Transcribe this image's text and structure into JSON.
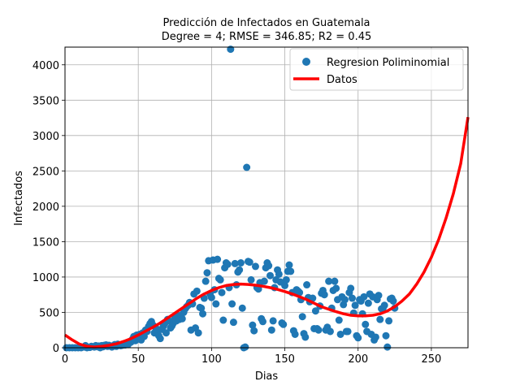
{
  "chart_data": {
    "type": "scatter",
    "title_line1": "Predicción de Infectados en  Guatemala",
    "title_line2": "Degree = 4; RMSE = 346.85; R2 = 0.45",
    "xlabel": "Dias",
    "ylabel": "Infectados",
    "xlim": [
      0,
      275
    ],
    "ylim": [
      0,
      4250
    ],
    "xticks": [
      0,
      50,
      100,
      150,
      200,
      250
    ],
    "yticks": [
      0,
      500,
      1000,
      1500,
      2000,
      2500,
      3000,
      3500,
      4000
    ],
    "grid": true,
    "legend_placement": "top-right",
    "colors": {
      "points": "#1f77b4",
      "curve": "#ff0000"
    },
    "series": [
      {
        "name": "Regresion Poliminomial",
        "kind": "scatter",
        "points": [
          [
            1,
            0
          ],
          [
            3,
            0
          ],
          [
            5,
            0
          ],
          [
            7,
            0
          ],
          [
            9,
            0
          ],
          [
            11,
            0
          ],
          [
            13,
            10
          ],
          [
            14,
            30
          ],
          [
            15,
            0
          ],
          [
            17,
            5
          ],
          [
            18,
            20
          ],
          [
            20,
            10
          ],
          [
            21,
            30
          ],
          [
            22,
            15
          ],
          [
            23,
            25
          ],
          [
            24,
            0
          ],
          [
            25,
            30
          ],
          [
            26,
            15
          ],
          [
            27,
            35
          ],
          [
            28,
            40
          ],
          [
            29,
            20
          ],
          [
            30,
            35
          ],
          [
            31,
            25
          ],
          [
            32,
            10
          ],
          [
            33,
            30
          ],
          [
            34,
            45
          ],
          [
            35,
            20
          ],
          [
            36,
            50
          ],
          [
            37,
            40
          ],
          [
            38,
            30
          ],
          [
            39,
            35
          ],
          [
            40,
            55
          ],
          [
            41,
            40
          ],
          [
            42,
            60
          ],
          [
            43,
            45
          ],
          [
            44,
            70
          ],
          [
            45,
            80
          ],
          [
            46,
            120
          ],
          [
            47,
            160
          ],
          [
            48,
            100
          ],
          [
            49,
            180
          ],
          [
            50,
            150
          ],
          [
            51,
            190
          ],
          [
            52,
            110
          ],
          [
            53,
            210
          ],
          [
            54,
            160
          ],
          [
            55,
            250
          ],
          [
            56,
            230
          ],
          [
            57,
            300
          ],
          [
            58,
            340
          ],
          [
            59,
            370
          ],
          [
            60,
            320
          ],
          [
            61,
            210
          ],
          [
            62,
            280
          ],
          [
            63,
            250
          ],
          [
            64,
            170
          ],
          [
            65,
            130
          ],
          [
            66,
            260
          ],
          [
            67,
            300
          ],
          [
            68,
            340
          ],
          [
            69,
            210
          ],
          [
            70,
            400
          ],
          [
            71,
            380
          ],
          [
            72,
            280
          ],
          [
            73,
            310
          ],
          [
            74,
            350
          ],
          [
            75,
            420
          ],
          [
            76,
            380
          ],
          [
            77,
            450
          ],
          [
            78,
            400
          ],
          [
            79,
            460
          ],
          [
            80,
            410
          ],
          [
            81,
            500
          ],
          [
            82,
            550
          ],
          [
            83,
            580
          ],
          [
            84,
            600
          ],
          [
            85,
            640
          ],
          [
            86,
            250
          ],
          [
            87,
            620
          ],
          [
            88,
            760
          ],
          [
            89,
            280
          ],
          [
            90,
            800
          ],
          [
            91,
            210
          ],
          [
            92,
            570
          ],
          [
            93,
            560
          ],
          [
            94,
            480
          ],
          [
            95,
            700
          ],
          [
            96,
            940
          ],
          [
            97,
            1060
          ],
          [
            98,
            1230
          ],
          [
            99,
            760
          ],
          [
            100,
            710
          ],
          [
            101,
            1240
          ],
          [
            102,
            820
          ],
          [
            103,
            620
          ],
          [
            104,
            1250
          ],
          [
            105,
            980
          ],
          [
            106,
            960
          ],
          [
            107,
            780
          ],
          [
            108,
            390
          ],
          [
            109,
            1130
          ],
          [
            110,
            1200
          ],
          [
            111,
            1180
          ],
          [
            112,
            850
          ],
          [
            113,
            4220
          ],
          [
            114,
            620
          ],
          [
            115,
            360
          ],
          [
            116,
            1190
          ],
          [
            117,
            890
          ],
          [
            118,
            1070
          ],
          [
            119,
            1100
          ],
          [
            120,
            1200
          ],
          [
            121,
            560
          ],
          [
            122,
            0
          ],
          [
            123,
            10
          ],
          [
            124,
            2550
          ],
          [
            125,
            1220
          ],
          [
            126,
            1210
          ],
          [
            127,
            960
          ],
          [
            128,
            320
          ],
          [
            129,
            240
          ],
          [
            130,
            1150
          ],
          [
            131,
            850
          ],
          [
            132,
            830
          ],
          [
            133,
            920
          ],
          [
            134,
            410
          ],
          [
            135,
            370
          ],
          [
            136,
            940
          ],
          [
            137,
            1130
          ],
          [
            138,
            1200
          ],
          [
            139,
            1160
          ],
          [
            140,
            1020
          ],
          [
            141,
            250
          ],
          [
            142,
            380
          ],
          [
            143,
            850
          ],
          [
            144,
            960
          ],
          [
            145,
            1100
          ],
          [
            146,
            1040
          ],
          [
            147,
            930
          ],
          [
            148,
            350
          ],
          [
            149,
            330
          ],
          [
            150,
            880
          ],
          [
            151,
            960
          ],
          [
            152,
            1080
          ],
          [
            153,
            1170
          ],
          [
            154,
            1080
          ],
          [
            155,
            780
          ],
          [
            156,
            240
          ],
          [
            157,
            190
          ],
          [
            158,
            820
          ],
          [
            159,
            800
          ],
          [
            160,
            780
          ],
          [
            161,
            680
          ],
          [
            162,
            440
          ],
          [
            163,
            200
          ],
          [
            164,
            150
          ],
          [
            165,
            890
          ],
          [
            166,
            710
          ],
          [
            167,
            650
          ],
          [
            168,
            690
          ],
          [
            169,
            700
          ],
          [
            170,
            270
          ],
          [
            171,
            520
          ],
          [
            172,
            270
          ],
          [
            173,
            250
          ],
          [
            174,
            590
          ],
          [
            175,
            770
          ],
          [
            176,
            810
          ],
          [
            177,
            750
          ],
          [
            178,
            250
          ],
          [
            179,
            290
          ],
          [
            180,
            940
          ],
          [
            181,
            230
          ],
          [
            182,
            560
          ],
          [
            183,
            810
          ],
          [
            184,
            940
          ],
          [
            185,
            840
          ],
          [
            186,
            680
          ],
          [
            187,
            390
          ],
          [
            188,
            190
          ],
          [
            189,
            720
          ],
          [
            190,
            610
          ],
          [
            191,
            680
          ],
          [
            192,
            230
          ],
          [
            193,
            230
          ],
          [
            194,
            780
          ],
          [
            195,
            840
          ],
          [
            196,
            700
          ],
          [
            197,
            490
          ],
          [
            198,
            600
          ],
          [
            199,
            170
          ],
          [
            200,
            140
          ],
          [
            201,
            680
          ],
          [
            202,
            660
          ],
          [
            203,
            480
          ],
          [
            204,
            720
          ],
          [
            205,
            330
          ],
          [
            206,
            230
          ],
          [
            207,
            630
          ],
          [
            208,
            760
          ],
          [
            209,
            190
          ],
          [
            210,
            720
          ],
          [
            211,
            110
          ],
          [
            212,
            150
          ],
          [
            213,
            680
          ],
          [
            214,
            740
          ],
          [
            215,
            400
          ],
          [
            216,
            550
          ],
          [
            217,
            560
          ],
          [
            218,
            600
          ],
          [
            219,
            170
          ],
          [
            220,
            10
          ],
          [
            221,
            380
          ],
          [
            222,
            690
          ],
          [
            223,
            700
          ],
          [
            224,
            660
          ],
          [
            225,
            560
          ]
        ]
      },
      {
        "name": "Datos",
        "kind": "curve",
        "points": [
          [
            0,
            180
          ],
          [
            5,
            110
          ],
          [
            10,
            50
          ],
          [
            15,
            20
          ],
          [
            20,
            10
          ],
          [
            25,
            20
          ],
          [
            30,
            35
          ],
          [
            35,
            55
          ],
          [
            40,
            90
          ],
          [
            45,
            130
          ],
          [
            50,
            180
          ],
          [
            55,
            235
          ],
          [
            60,
            290
          ],
          [
            65,
            350
          ],
          [
            70,
            420
          ],
          [
            75,
            490
          ],
          [
            80,
            560
          ],
          [
            85,
            630
          ],
          [
            90,
            700
          ],
          [
            95,
            760
          ],
          [
            100,
            810
          ],
          [
            105,
            850
          ],
          [
            110,
            880
          ],
          [
            115,
            895
          ],
          [
            120,
            900
          ],
          [
            125,
            895
          ],
          [
            130,
            885
          ],
          [
            135,
            870
          ],
          [
            140,
            850
          ],
          [
            145,
            825
          ],
          [
            150,
            795
          ],
          [
            155,
            760
          ],
          [
            160,
            720
          ],
          [
            165,
            680
          ],
          [
            170,
            630
          ],
          [
            175,
            580
          ],
          [
            180,
            545
          ],
          [
            185,
            510
          ],
          [
            190,
            480
          ],
          [
            195,
            460
          ],
          [
            200,
            450
          ],
          [
            205,
            450
          ],
          [
            210,
            460
          ],
          [
            215,
            480
          ],
          [
            220,
            520
          ],
          [
            225,
            580
          ],
          [
            230,
            660
          ],
          [
            235,
            760
          ],
          [
            240,
            900
          ],
          [
            245,
            1070
          ],
          [
            250,
            1280
          ],
          [
            255,
            1530
          ],
          [
            260,
            1830
          ],
          [
            265,
            2180
          ],
          [
            270,
            2600
          ],
          [
            275,
            3260
          ]
        ]
      }
    ]
  }
}
